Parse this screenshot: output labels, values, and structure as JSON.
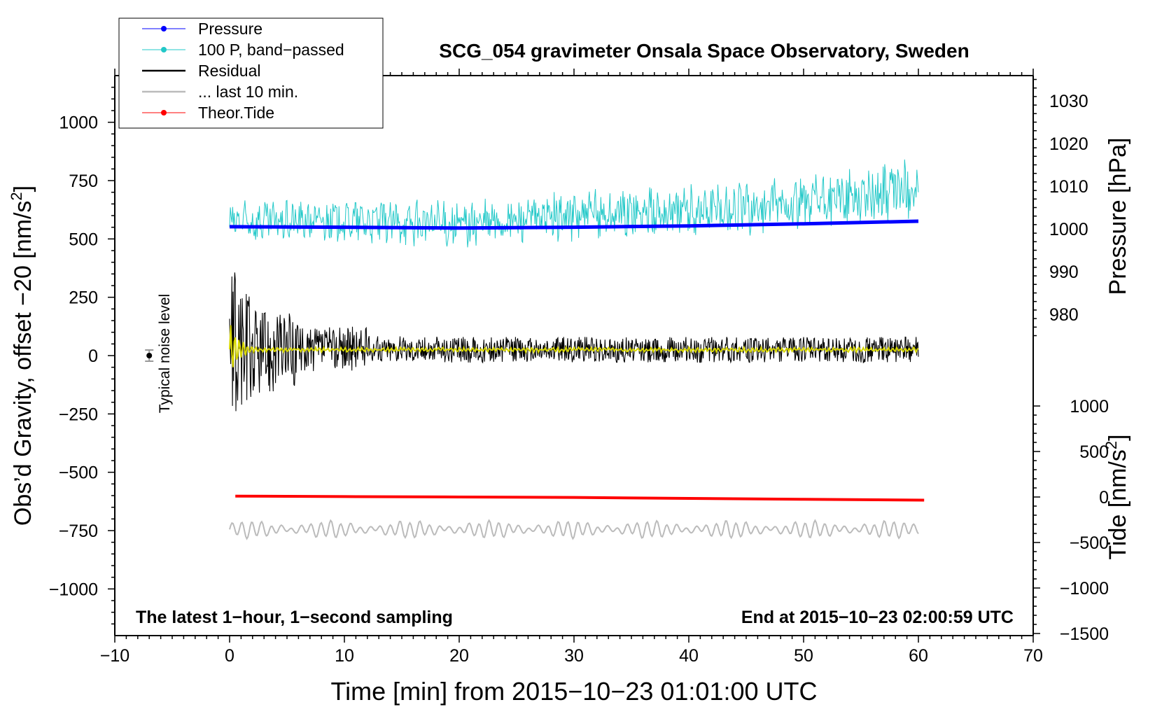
{
  "chart_data": {
    "type": "line",
    "title": "SCG_054 gravimeter Onsala Space Observatory, Sweden",
    "xlabel": "Time [min] from 2015−10−23 01:01:00 UTC",
    "ylabel": "Obs’d Gravity, offset −20 [nm/s²]",
    "ylabel_base": "Obs’d Gravity, offset −20 [nm/s",
    "ylabel_sup": "2",
    "ylabel_end": "]",
    "xlim": [
      -10,
      70
    ],
    "ylim": [
      -1200,
      1200
    ],
    "x_ticks": [
      -10,
      0,
      10,
      20,
      30,
      40,
      50,
      60,
      70
    ],
    "x_tick_labels": [
      "−10",
      "0",
      "10",
      "20",
      "30",
      "40",
      "50",
      "60",
      "70"
    ],
    "y_ticks": [
      -1000,
      -750,
      -500,
      -250,
      0,
      250,
      500,
      750,
      1000
    ],
    "y_tick_labels": [
      "−1000",
      "−750",
      "−500",
      "−250",
      "0",
      "250",
      "500",
      "750",
      "1000"
    ],
    "right_axis_pressure": {
      "label": "Pressure [hPa]",
      "ticks": [
        980,
        990,
        1000,
        1010,
        1020,
        1030
      ],
      "tick_labels": [
        "980",
        "990",
        "1000",
        "1010",
        "1020",
        "1030"
      ]
    },
    "right_axis_tide": {
      "label": "Tide [nm/s²]",
      "label_base": "Tide [nm/s",
      "label_sup": "2",
      "label_end": "]",
      "ticks": [
        -1500,
        -1000,
        -500,
        0,
        500,
        1000
      ],
      "tick_labels": [
        "−1500",
        "−1000",
        "−500",
        "0",
        "500",
        "1000"
      ]
    },
    "legend": [
      {
        "name": "Pressure",
        "color": "#0000ff",
        "marker": true
      },
      {
        "name": "100 P, band−passed",
        "color": "#22c8c8",
        "marker": true
      },
      {
        "name": "Residual",
        "color": "#000000",
        "marker": false
      },
      {
        "name": "... last 10 min.",
        "color": "#bbbbbb",
        "marker": false
      },
      {
        "name": "Theor.Tide",
        "color": "#ff0000",
        "marker": true
      }
    ],
    "series": [
      {
        "name": "Pressure",
        "axis": "pressure",
        "x": [
          0,
          10,
          20,
          30,
          40,
          50,
          60
        ],
        "values": [
          1000.5,
          1000.4,
          1000.2,
          1000.4,
          1000.7,
          1001.2,
          1001.8
        ]
      },
      {
        "name": "100 P, band−passed",
        "axis": "gravity",
        "x": [
          0,
          10,
          20,
          30,
          40,
          50,
          60
        ],
        "values": [
          570,
          580,
          560,
          600,
          620,
          650,
          720
        ]
      },
      {
        "name": "Residual",
        "axis": "gravity",
        "x": [
          0,
          1,
          2,
          3,
          4,
          5,
          6,
          10,
          20,
          30,
          40,
          50,
          60
        ],
        "values": [
          20,
          30,
          25,
          20,
          25,
          30,
          25,
          30,
          25,
          25,
          25,
          25,
          25
        ]
      },
      {
        "name": "... last 10 min.",
        "axis": "gravity",
        "x": [
          0,
          10,
          20,
          30,
          40,
          50,
          60
        ],
        "values": [
          -745,
          -745,
          -745,
          -745,
          -745,
          -745,
          -745
        ]
      },
      {
        "name": "Theor.Tide",
        "axis": "tide",
        "x": [
          0.5,
          10,
          20,
          30,
          40,
          50,
          60.5
        ],
        "values": [
          10,
          5,
          0,
          -5,
          -15,
          -25,
          -35
        ]
      }
    ],
    "annotations": {
      "noise_label": "Typical noise level",
      "noise_point": {
        "x": -7,
        "y": 0
      },
      "bottom_left": "The latest 1−hour, 1−second sampling",
      "bottom_right": "End at 2015−10−23 02:00:59 UTC"
    }
  }
}
